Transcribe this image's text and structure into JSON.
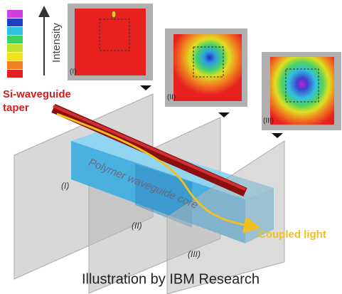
{
  "legend_label": "Intensity",
  "insets": [
    {
      "label": "(I)"
    },
    {
      "label": "(II)"
    },
    {
      "label": "(III)"
    }
  ],
  "planes": [
    {
      "label": "(I)"
    },
    {
      "label": "(II)"
    },
    {
      "label": "(III)"
    }
  ],
  "taper_label": [
    "Si-waveguide",
    "taper"
  ],
  "core_label": "Polymer waveguide core",
  "output_label": "Coupled light",
  "caption": "Illustration by IBM Research"
}
